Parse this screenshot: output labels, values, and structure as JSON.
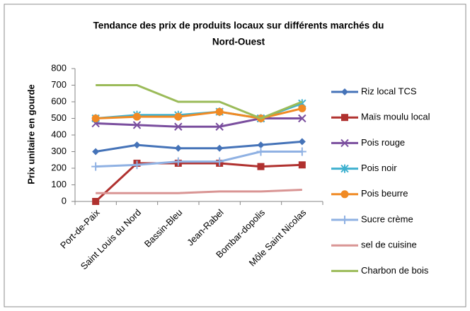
{
  "chart_data": {
    "type": "line",
    "title": [
      "Tendance des prix  de produits locaux sur différents marchés du",
      "Nord-Ouest"
    ],
    "y_label": "Prix unitaire en gourde",
    "categories": [
      "Port-de-Paix",
      "Saint Louis du Nord",
      "Bassin-Bleu",
      "Jean-Rabel",
      "Bombar-dopolis",
      "Môle Saint Nicolas"
    ],
    "ylim": [
      0,
      800
    ],
    "yticks": [
      0,
      100,
      200,
      300,
      400,
      500,
      600,
      700,
      800
    ],
    "grid": false,
    "legend": "right",
    "series": [
      {
        "name": "Riz local TCS",
        "color": "#4573b8",
        "marker": "diamond",
        "values": [
          300,
          340,
          320,
          320,
          340,
          360
        ]
      },
      {
        "name": "Maïs moulu local",
        "color": "#b0312f",
        "marker": "square",
        "values": [
          0,
          230,
          230,
          230,
          210,
          220
        ]
      },
      {
        "name": "Pois rouge",
        "color": "#7a4e9e",
        "marker": "x",
        "values": [
          470,
          460,
          450,
          450,
          500,
          500
        ]
      },
      {
        "name": "Pois noir",
        "color": "#3fb1cf",
        "marker": "star",
        "values": [
          500,
          520,
          520,
          540,
          500,
          590
        ]
      },
      {
        "name": "Pois beurre",
        "color": "#f08a24",
        "marker": "circle",
        "values": [
          500,
          510,
          510,
          540,
          500,
          560
        ]
      },
      {
        "name": "Sucre crème",
        "color": "#8fb1e3",
        "marker": "plus",
        "values": [
          210,
          220,
          240,
          240,
          300,
          300
        ]
      },
      {
        "name": "sel de cuisine",
        "color": "#d99594",
        "marker": "none",
        "values": [
          50,
          50,
          50,
          60,
          60,
          70
        ]
      },
      {
        "name": "Charbon de bois",
        "color": "#9bbb59",
        "marker": "none",
        "values": [
          700,
          700,
          600,
          600,
          500,
          600
        ]
      }
    ]
  }
}
